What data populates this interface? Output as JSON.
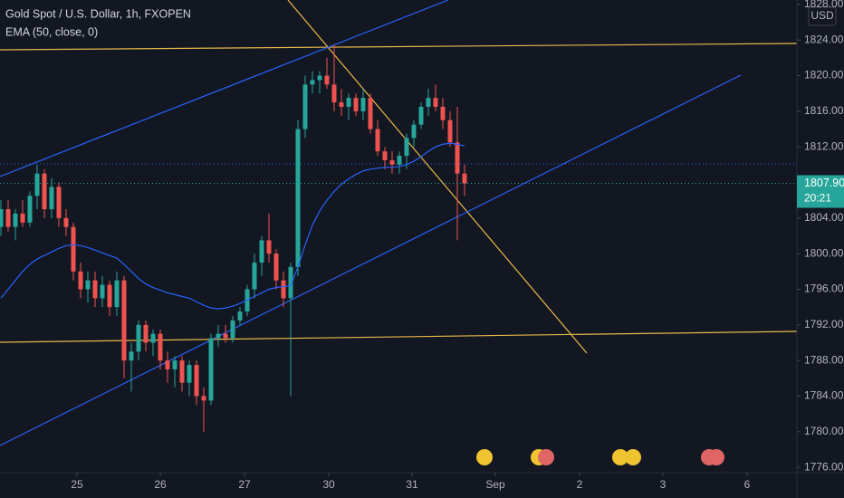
{
  "chart_data": {
    "type": "candlestick",
    "title": "Gold Spot / U.S. Dollar, 1h, FXOPEN",
    "currency": "USD",
    "up_color": "#26a69a",
    "down_color": "#ef5350",
    "open": [
      1803,
      1805,
      1803,
      1804.5,
      1803.5,
      1806.5,
      1809,
      1805,
      1807.5,
      1804,
      1803,
      1798,
      1796,
      1797,
      1795,
      1796.5,
      1794,
      1797,
      1788,
      1789,
      1792,
      1790,
      1791,
      1788,
      1787,
      1788,
      1785.5,
      1787.5,
      1784,
      1783.5,
      1790.5,
      1791,
      1790.5,
      1792.5,
      1793.5,
      1796,
      1799,
      1801.5,
      1800,
      1797,
      1795,
      1798.5,
      1814,
      1819,
      1819.5,
      1820,
      1819,
      1817,
      1816.5,
      1817.5,
      1816,
      1817.5,
      1814,
      1811.5,
      1810.5,
      1810,
      1811,
      1813,
      1814.5,
      1816.5,
      1817.5,
      1816.5,
      1815,
      1812.5,
      1809
    ],
    "high": [
      1806,
      1806,
      1805,
      1806,
      1807,
      1810,
      1809.5,
      1808.5,
      1808,
      1805,
      1803.5,
      1799,
      1798,
      1798,
      1797.5,
      1797,
      1798,
      1797.5,
      1790,
      1792.5,
      1792.5,
      1791.5,
      1791.5,
      1789,
      1788.5,
      1788.5,
      1788,
      1788,
      1785,
      1791,
      1792,
      1792,
      1793,
      1794,
      1796.5,
      1800,
      1802,
      1804.5,
      1800.5,
      1798,
      1799,
      1815,
      1820,
      1820.5,
      1820.5,
      1822,
      1823.5,
      1818.5,
      1818,
      1818,
      1818.5,
      1818,
      1815,
      1812,
      1811.5,
      1811.5,
      1813.5,
      1815,
      1817,
      1818.5,
      1819,
      1817.5,
      1816,
      1816.5,
      1810
    ],
    "low": [
      1802,
      1802.5,
      1801.5,
      1803,
      1803,
      1805,
      1804,
      1804,
      1803,
      1802,
      1797,
      1795,
      1794.5,
      1794,
      1794,
      1793,
      1793,
      1786,
      1784.5,
      1788,
      1789,
      1788.5,
      1787,
      1785.5,
      1785,
      1784.5,
      1784,
      1783,
      1780,
      1783,
      1789.5,
      1790,
      1790,
      1792,
      1793,
      1795,
      1797.5,
      1799,
      1796,
      1794,
      1784,
      1797.5,
      1813,
      1818,
      1818,
      1818.5,
      1816,
      1815.5,
      1815,
      1815.5,
      1815,
      1813.5,
      1811,
      1809.5,
      1809,
      1809,
      1809.5,
      1812,
      1814,
      1815.5,
      1816,
      1814,
      1812,
      1801.5,
      1806.5
    ],
    "close": [
      1805,
      1803,
      1804.5,
      1803.5,
      1806.5,
      1809,
      1805,
      1807.5,
      1804,
      1803,
      1798,
      1796,
      1797,
      1795,
      1796.5,
      1794,
      1797,
      1788,
      1789,
      1792,
      1790,
      1791,
      1788,
      1787,
      1788,
      1785.5,
      1787.5,
      1784,
      1783.5,
      1790.5,
      1791,
      1790.5,
      1792.5,
      1793.5,
      1796,
      1799,
      1801.5,
      1800,
      1797,
      1795,
      1798.5,
      1814,
      1819,
      1819.5,
      1820,
      1819,
      1817,
      1816.5,
      1817.5,
      1816,
      1817.5,
      1814,
      1811.5,
      1810.5,
      1810,
      1811,
      1813,
      1814.5,
      1816.5,
      1817.5,
      1816.5,
      1815,
      1812.5,
      1809,
      1807.9
    ],
    "ema": {
      "name": "EMA (50, close, 0)",
      "color": "#2962ff",
      "values": [
        1795,
        1796,
        1797,
        1798,
        1798.8,
        1799.4,
        1799.8,
        1800.2,
        1800.6,
        1800.9,
        1801,
        1800.9,
        1800.7,
        1800.4,
        1800.1,
        1799.8,
        1799.5,
        1798.8,
        1798,
        1797.2,
        1796.6,
        1796.2,
        1795.9,
        1795.6,
        1795.4,
        1795.2,
        1795,
        1794.6,
        1794.2,
        1793.9,
        1793.8,
        1793.9,
        1794.1,
        1794.4,
        1794.8,
        1795.2,
        1795.6,
        1796,
        1796.2,
        1796.3,
        1796.4,
        1798.5,
        1801,
        1803.2,
        1804.8,
        1806,
        1807,
        1807.8,
        1808.4,
        1808.9,
        1809.3,
        1809.5,
        1809.6,
        1809.7,
        1809.7,
        1809.8,
        1810,
        1810.4,
        1810.9,
        1811.5,
        1812,
        1812.3,
        1812.4,
        1812.3,
        1812.1
      ]
    },
    "last_price": {
      "value": 1807.9,
      "label": "1807.90"
    },
    "countdown": "20:21",
    "ylim": [
      1775.4,
      1828.5
    ],
    "yticks": [
      {
        "value": 1828,
        "label": "1828.00"
      },
      {
        "value": 1824,
        "label": "1824.00"
      },
      {
        "value": 1820,
        "label": "1820.00"
      },
      {
        "value": 1816,
        "label": "1816.00"
      },
      {
        "value": 1812,
        "label": "1812.00"
      },
      {
        "value": 1804,
        "label": "1804.00"
      },
      {
        "value": 1800,
        "label": "1800.00"
      },
      {
        "value": 1796,
        "label": "1796.00"
      },
      {
        "value": 1792,
        "label": "1792.00"
      },
      {
        "value": 1788,
        "label": "1788.00"
      },
      {
        "value": 1784,
        "label": "1784.00"
      },
      {
        "value": 1780,
        "label": "1780.00"
      },
      {
        "value": 1776,
        "label": "1776.00"
      }
    ],
    "xlim": [
      -0.125,
      109.875
    ],
    "xticks": [
      {
        "value": 10.5,
        "label": "25"
      },
      {
        "value": 22,
        "label": "26"
      },
      {
        "value": 33.625,
        "label": "27"
      },
      {
        "value": 45.25,
        "label": "30"
      },
      {
        "value": 56.75,
        "label": "31"
      },
      {
        "value": 68.25,
        "label": "Sep"
      },
      {
        "value": 79.875,
        "label": "2"
      },
      {
        "value": 91.375,
        "label": "3"
      },
      {
        "value": 103,
        "label": "6"
      }
    ]
  }
}
